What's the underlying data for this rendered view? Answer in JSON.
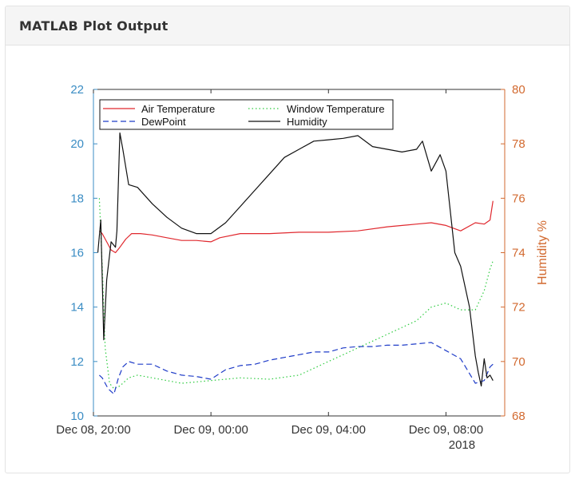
{
  "panel": {
    "title": "MATLAB Plot Output"
  },
  "chart_data": {
    "type": "line",
    "title": "",
    "xlabel": "",
    "x_axis": {
      "ticks": [
        "Dec 08, 20:00",
        "Dec 09, 00:00",
        "Dec 09, 04:00",
        "Dec 09, 08:00"
      ],
      "year_label": "2018",
      "start_hour": 20.0,
      "end_hour": 34.0
    },
    "y_left": {
      "ylim": [
        10,
        22
      ],
      "ticks": [
        10,
        12,
        14,
        16,
        18,
        20,
        22
      ],
      "color": "#3b8dc4"
    },
    "y_right": {
      "label": "Humidity %",
      "ylim": [
        68,
        80
      ],
      "ticks": [
        68,
        70,
        72,
        74,
        76,
        78,
        80
      ],
      "color": "#d2692f"
    },
    "legend": {
      "location": "top-left",
      "entries": [
        "Air Temperature",
        "Window Temperature",
        "DewPoint",
        "Humidity"
      ]
    },
    "series": [
      {
        "name": "Air Temperature",
        "axis": "left",
        "color": "#e0282e",
        "style": "solid",
        "x": [
          20.2,
          20.3,
          20.45,
          20.6,
          20.75,
          20.9,
          21.1,
          21.3,
          21.6,
          22,
          22.5,
          23,
          23.5,
          24,
          24.3,
          25,
          26,
          27,
          28,
          29,
          30,
          31,
          31.5,
          32,
          32.5,
          33,
          33.3,
          33.5,
          33.6
        ],
        "y": [
          16.8,
          16.7,
          16.4,
          16.1,
          16.0,
          16.2,
          16.5,
          16.7,
          16.7,
          16.65,
          16.55,
          16.45,
          16.45,
          16.4,
          16.55,
          16.7,
          16.7,
          16.75,
          16.75,
          16.8,
          16.95,
          17.05,
          17.1,
          17.0,
          16.8,
          17.1,
          17.05,
          17.2,
          17.9
        ]
      },
      {
        "name": "Window Temperature",
        "axis": "left",
        "color": "#2ecc40",
        "style": "dotted",
        "x": [
          20.2,
          20.3,
          20.4,
          20.55,
          20.7,
          20.9,
          21.2,
          21.5,
          22,
          22.5,
          23,
          24,
          25,
          26,
          27,
          28,
          29,
          30,
          31,
          31.5,
          32,
          32.5,
          33,
          33.3,
          33.5,
          33.6
        ],
        "y": [
          18.0,
          15.5,
          12.5,
          11.2,
          11.0,
          11.1,
          11.4,
          11.5,
          11.4,
          11.3,
          11.2,
          11.3,
          11.4,
          11.35,
          11.5,
          12.0,
          12.5,
          13.0,
          13.5,
          14.0,
          14.15,
          13.9,
          13.9,
          14.6,
          15.4,
          15.7
        ]
      },
      {
        "name": "DewPoint",
        "axis": "left",
        "color": "#1f3cc8",
        "style": "dashed",
        "x": [
          20.2,
          20.3,
          20.5,
          20.7,
          20.85,
          21,
          21.2,
          21.5,
          22,
          22.5,
          23,
          23.5,
          24,
          24.5,
          25,
          25.5,
          26,
          26.5,
          27,
          27.5,
          28,
          28.5,
          29,
          29.5,
          30,
          30.5,
          31,
          31.5,
          32,
          32.5,
          33,
          33.3,
          33.5,
          33.6
        ],
        "y": [
          11.5,
          11.4,
          11.0,
          10.8,
          11.4,
          11.8,
          12.0,
          11.9,
          11.9,
          11.65,
          11.5,
          11.45,
          11.35,
          11.7,
          11.85,
          11.9,
          12.05,
          12.15,
          12.25,
          12.35,
          12.35,
          12.5,
          12.55,
          12.55,
          12.6,
          12.6,
          12.65,
          12.7,
          12.4,
          12.1,
          11.2,
          11.3,
          11.8,
          11.9
        ]
      },
      {
        "name": "Humidity",
        "axis": "right",
        "color": "#111111",
        "style": "solid",
        "x": [
          20.15,
          20.25,
          20.35,
          20.45,
          20.6,
          20.75,
          20.8,
          20.9,
          21.0,
          21.2,
          21.5,
          22,
          22.5,
          23,
          23.5,
          24,
          24.5,
          25,
          25.5,
          26,
          26.5,
          27,
          27.5,
          28,
          28.5,
          29,
          29.5,
          30,
          30.5,
          31,
          31.2,
          31.5,
          31.8,
          32,
          32.1,
          32.3,
          32.5,
          32.8,
          33,
          33.1,
          33.2,
          33.3,
          33.4,
          33.5,
          33.6
        ],
        "y": [
          74.0,
          75.2,
          70.8,
          73.0,
          74.4,
          74.2,
          74.8,
          78.4,
          77.8,
          76.5,
          76.4,
          75.8,
          75.3,
          74.9,
          74.7,
          74.7,
          75.1,
          75.7,
          76.3,
          76.9,
          77.5,
          77.8,
          78.1,
          78.15,
          78.2,
          78.3,
          77.9,
          77.8,
          77.7,
          77.8,
          78.1,
          77.0,
          77.6,
          77.0,
          76.0,
          74.0,
          73.5,
          72.0,
          70.2,
          69.6,
          69.1,
          70.1,
          69.4,
          69.5,
          69.3
        ]
      }
    ]
  }
}
